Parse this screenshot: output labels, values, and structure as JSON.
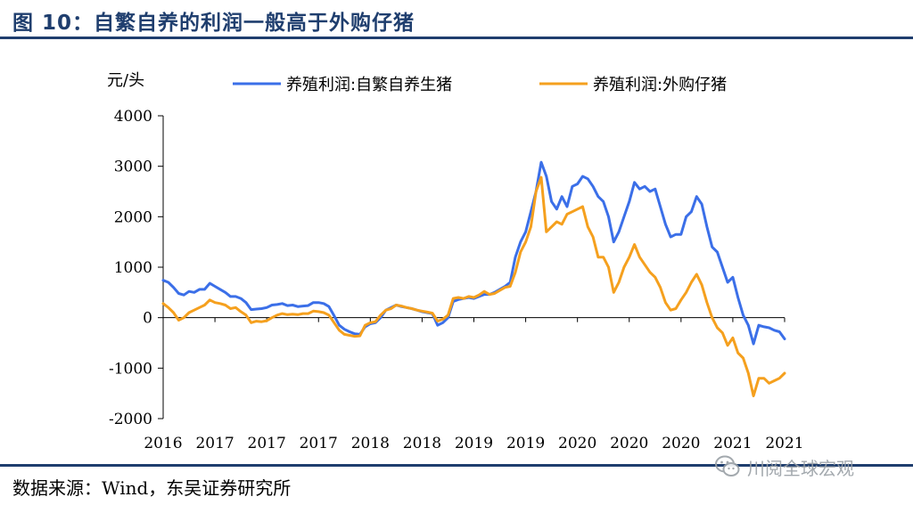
{
  "title": "图 10：自繁自养的利润一般高于外购仔猪",
  "source": "数据来源：Wind，东吴证券研究所",
  "watermark": {
    "text": "川阅全球宏观",
    "icon": "wechat-icon"
  },
  "colors": {
    "series_1": "#3b6fe8",
    "series_2": "#f5a01e",
    "title": "#1f3e6e"
  },
  "chart_data": {
    "type": "line",
    "unit": "元/头",
    "ylim": [
      -2000,
      4000
    ],
    "yticks": [
      "4000",
      "3000",
      "2000",
      "1000",
      "0",
      "-1000",
      "-2000"
    ],
    "ytick_values": [
      4000,
      3000,
      2000,
      1000,
      0,
      -1000,
      -2000
    ],
    "xticks": [
      "2016",
      "2017",
      "2017",
      "2017",
      "2018",
      "2018",
      "2019",
      "2019",
      "2020",
      "2020",
      "2020",
      "2021",
      "2021"
    ],
    "legend_position": "top",
    "grid": false,
    "x": [
      0,
      1,
      2,
      3,
      4,
      5,
      6,
      7,
      8,
      9,
      10,
      11,
      12,
      13,
      14,
      15,
      16,
      17,
      18,
      19,
      20,
      21,
      22,
      23,
      24,
      25,
      26,
      27,
      28,
      29,
      30,
      31,
      32,
      33,
      34,
      35,
      36,
      37,
      38,
      39,
      40,
      41,
      42,
      43,
      44,
      45,
      46,
      47,
      48,
      49,
      50,
      51,
      52,
      53,
      54,
      55,
      56,
      57,
      58,
      59,
      60,
      61,
      62,
      63,
      64,
      65,
      66,
      67,
      68,
      69,
      70,
      71,
      72,
      73,
      74,
      75,
      76,
      77,
      78,
      79,
      80,
      81,
      82,
      83,
      84,
      85,
      86,
      87,
      88,
      89,
      90,
      91,
      92,
      93,
      94,
      95,
      96,
      97,
      98,
      99,
      100,
      101,
      102,
      103,
      104,
      105,
      106,
      107,
      108,
      109,
      110,
      111,
      112,
      113,
      114,
      115,
      116,
      117,
      118,
      119,
      120
    ],
    "series": [
      {
        "name": "养殖利润:自繁自养生猪",
        "values": [
          740,
          700,
          600,
          480,
          450,
          520,
          500,
          560,
          560,
          680,
          620,
          560,
          500,
          420,
          420,
          380,
          300,
          160,
          170,
          180,
          200,
          250,
          260,
          280,
          240,
          250,
          220,
          230,
          240,
          300,
          300,
          280,
          220,
          40,
          -150,
          -230,
          -280,
          -320,
          -330,
          -180,
          -120,
          -100,
          0,
          150,
          200,
          250,
          220,
          200,
          180,
          150,
          120,
          100,
          80,
          -150,
          -100,
          0,
          320,
          360,
          380,
          400,
          380,
          420,
          460,
          460,
          500,
          560,
          620,
          700,
          1200,
          1500,
          1700,
          2100,
          2500,
          3080,
          2800,
          2300,
          2150,
          2400,
          2200,
          2600,
          2650,
          2800,
          2750,
          2600,
          2400,
          2300,
          2000,
          1500,
          1700,
          2000,
          2300,
          2680,
          2550,
          2600,
          2500,
          2550,
          2200,
          1850,
          1600,
          1650,
          1650,
          2000,
          2100,
          2400,
          2250,
          1800,
          1400,
          1300,
          1000,
          700,
          800,
          400,
          50,
          -150,
          -520,
          -150,
          -180,
          -200,
          -250,
          -280,
          -420
        ]
      },
      {
        "name": "养殖利润:外购仔猪",
        "values": [
          280,
          200,
          100,
          -50,
          0,
          100,
          150,
          200,
          250,
          350,
          300,
          280,
          250,
          180,
          200,
          120,
          50,
          -100,
          -70,
          -80,
          -60,
          0,
          50,
          80,
          60,
          70,
          60,
          80,
          80,
          130,
          120,
          100,
          50,
          -100,
          -250,
          -330,
          -350,
          -370,
          -360,
          -150,
          -100,
          -80,
          50,
          150,
          180,
          250,
          230,
          200,
          180,
          150,
          130,
          110,
          90,
          -70,
          -30,
          50,
          380,
          400,
          380,
          420,
          400,
          450,
          520,
          460,
          480,
          540,
          600,
          620,
          900,
          1300,
          1500,
          1800,
          2500,
          2780,
          1700,
          1800,
          1900,
          1850,
          2050,
          2100,
          2150,
          2200,
          1800,
          1600,
          1200,
          1200,
          1000,
          500,
          700,
          1000,
          1200,
          1450,
          1200,
          1050,
          900,
          800,
          600,
          300,
          150,
          180,
          350,
          500,
          700,
          860,
          650,
          300,
          0,
          -200,
          -300,
          -550,
          -400,
          -700,
          -800,
          -1100,
          -1550,
          -1200,
          -1200,
          -1300,
          -1250,
          -1200,
          -1100
        ]
      }
    ]
  }
}
